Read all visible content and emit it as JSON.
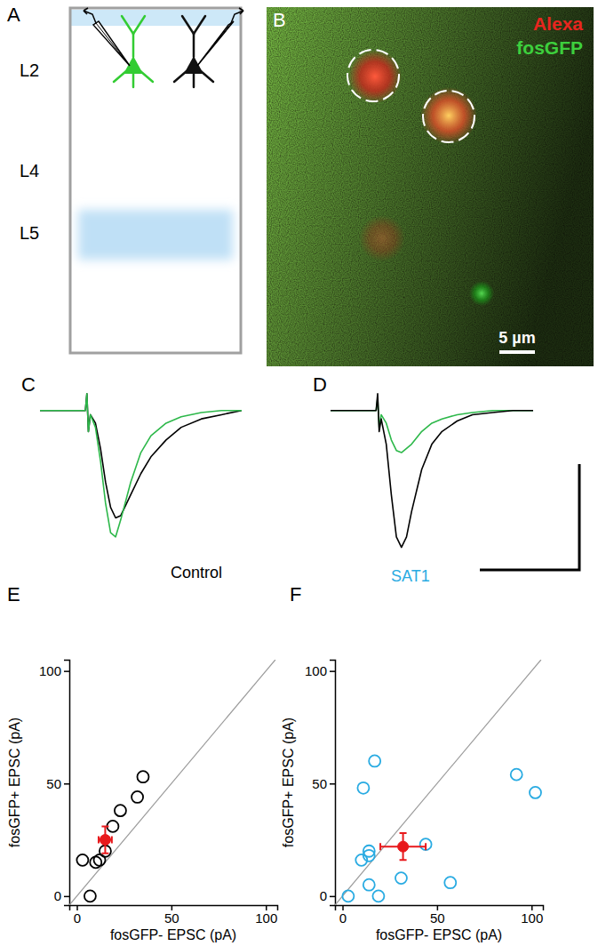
{
  "diagram": {
    "label": "A",
    "layers": [
      "L2",
      "L4",
      "L5"
    ]
  },
  "image": {
    "label": "B",
    "channels": [
      {
        "name": "Alexa",
        "color": "#e8251f"
      },
      {
        "name": "fosGFP",
        "color": "#3dcf3d"
      }
    ],
    "scale_bar": "5 µm"
  },
  "chart_data": [
    {
      "type": "line",
      "label": "C",
      "annotation": "Control",
      "color": "#000000",
      "tick_labels": false,
      "x": [
        0,
        2,
        4,
        6,
        8,
        9,
        9.3,
        9.6,
        10,
        11,
        12,
        13,
        14,
        15,
        16,
        18,
        20,
        22,
        25,
        28,
        32,
        36,
        40
      ],
      "xlim": [
        0,
        40
      ],
      "ylim": [
        -33,
        5
      ],
      "series": [
        {
          "color": "#000000",
          "values": [
            0,
            0,
            0,
            0,
            0,
            0,
            4,
            -5,
            -1,
            -3,
            -9,
            -17,
            -23,
            -25.5,
            -25,
            -20,
            -15,
            -11,
            -7,
            -4,
            -2,
            -1,
            0
          ]
        },
        {
          "color": "#2db84a",
          "values": [
            0,
            0,
            0,
            0,
            0,
            0,
            4,
            -5,
            -1,
            -4,
            -12,
            -22,
            -29,
            -30,
            -26,
            -17,
            -10,
            -6,
            -3,
            -1.5,
            -0.5,
            0,
            0
          ]
        }
      ]
    },
    {
      "type": "line",
      "label": "D",
      "annotation": "SAT1",
      "color": "#29abe2",
      "tick_labels": false,
      "x": [
        0,
        2,
        4,
        6,
        8,
        9,
        9.3,
        9.6,
        10,
        11,
        12,
        13,
        14,
        15,
        16,
        18,
        20,
        22,
        25,
        28,
        32,
        36,
        40
      ],
      "xlim": [
        0,
        40
      ],
      "ylim": [
        -33,
        5
      ],
      "series": [
        {
          "color": "#2db84a",
          "values": [
            0,
            0,
            0,
            0,
            0,
            0,
            3,
            -4,
            -1,
            -3,
            -7,
            -9.5,
            -10,
            -9,
            -8,
            -5,
            -3,
            -2,
            -1,
            -0.5,
            0,
            0,
            0
          ]
        },
        {
          "color": "#000000",
          "values": [
            0,
            0,
            0,
            0,
            0,
            0,
            4,
            -5,
            -2,
            -8,
            -20,
            -30,
            -32.5,
            -30,
            -24,
            -14,
            -8,
            -5,
            -2.5,
            -1,
            -0.5,
            0,
            0
          ]
        }
      ]
    },
    {
      "type": "scatter",
      "label": "E",
      "x_label": "fosGFP- EPSC (pA)",
      "y_label": "fosGFP+ EPSC (pA)",
      "xlim": [
        -4,
        106
      ],
      "ylim": [
        -4,
        105
      ],
      "xticks": [
        0,
        50,
        100
      ],
      "yticks": [
        0,
        50,
        100
      ],
      "series": [
        {
          "color": "#000000",
          "marker": "open-circle",
          "x": [
            3,
            7,
            10,
            12,
            15,
            19,
            23,
            32,
            35
          ],
          "values": [
            16,
            0,
            15,
            16,
            20,
            31,
            38,
            44,
            53
          ]
        },
        {
          "color": "#e8191c",
          "marker": "filled-circle",
          "x": [
            15
          ],
          "values": [
            25
          ],
          "x_error": [
            3.5
          ],
          "y_error": [
            6
          ]
        }
      ]
    },
    {
      "type": "scatter",
      "label": "F",
      "x_label": "fosGFP- EPSC (pA)",
      "y_label": "fosGFP+ EPSC (pA)",
      "xlim": [
        -4,
        106
      ],
      "ylim": [
        -4,
        105
      ],
      "xticks": [
        0,
        50,
        100
      ],
      "yticks": [
        0,
        50,
        100
      ],
      "series": [
        {
          "color": "#29abe2",
          "marker": "open-circle",
          "x": [
            3,
            10,
            11,
            14,
            14,
            17,
            14,
            19,
            31,
            44,
            57,
            92,
            102
          ],
          "values": [
            0,
            16,
            48,
            20,
            18,
            60,
            5,
            0,
            8,
            23,
            6,
            54,
            46
          ]
        },
        {
          "color": "#e8191c",
          "marker": "filled-circle",
          "x": [
            32
          ],
          "values": [
            22
          ],
          "x_error": [
            12
          ],
          "y_error": [
            6
          ]
        }
      ]
    }
  ]
}
